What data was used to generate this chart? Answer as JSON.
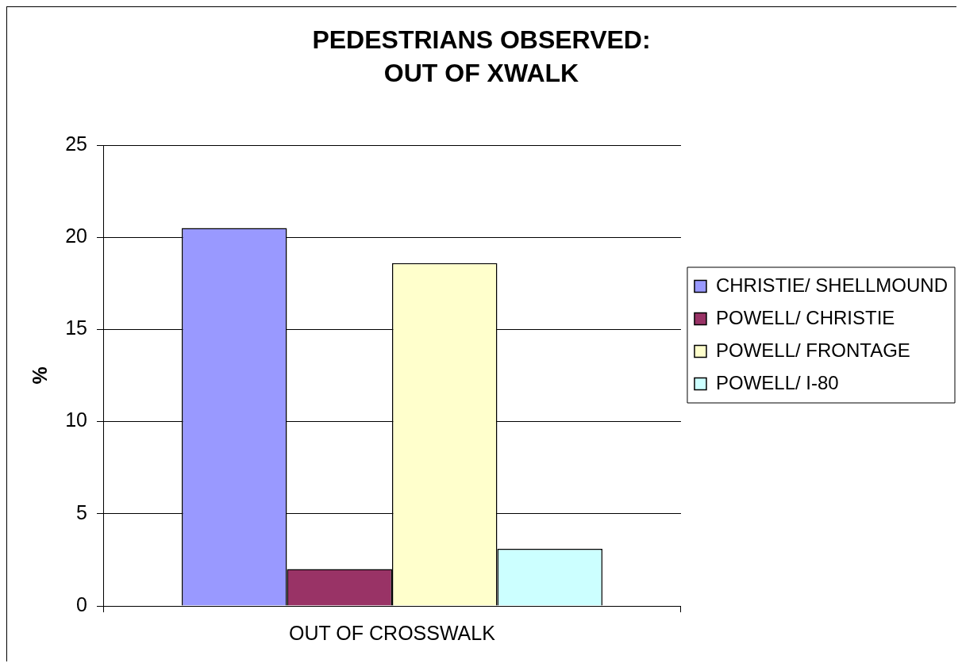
{
  "chart_data": {
    "type": "bar",
    "title": "PEDESTRIANS OBSERVED:\nOUT OF XWALK",
    "ylabel": "%",
    "categories": [
      "OUT OF CROSSWALK"
    ],
    "series": [
      {
        "name": "CHRISTIE/ SHELLMOUND",
        "color": "#9999ff",
        "values": [
          20.5
        ]
      },
      {
        "name": "POWELL/ CHRISTIE",
        "color": "#993366",
        "values": [
          2.0
        ]
      },
      {
        "name": "POWELL/ FRONTAGE",
        "color": "#ffffcc",
        "values": [
          18.6
        ]
      },
      {
        "name": "POWELL/ I-80",
        "color": "#ccffff",
        "values": [
          3.1
        ]
      }
    ],
    "ylim": [
      0,
      25
    ],
    "yticks": [
      0,
      5,
      10,
      15,
      20,
      25
    ],
    "grid": "y",
    "legend": "right"
  }
}
